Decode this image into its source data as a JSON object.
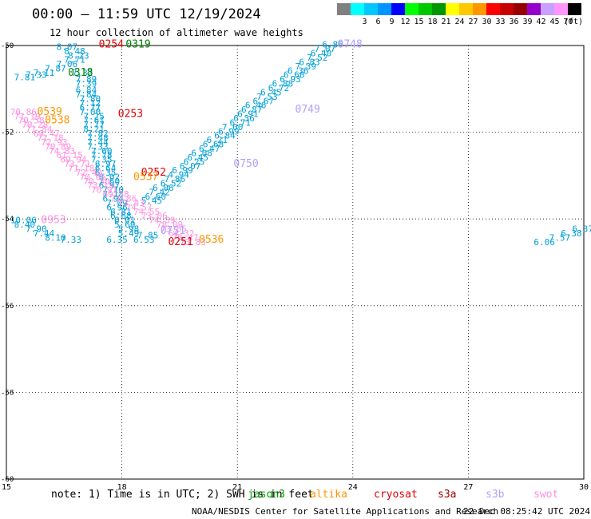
{
  "header": {
    "title": "00:00 – 11:59 UTC 12/19/2024",
    "subtitle": "12 hour collection of altimeter wave heights"
  },
  "legend": {
    "unit": "(ft)",
    "items": [
      {
        "label": "",
        "color": "#808080"
      },
      {
        "label": "3",
        "color": "#00ffff"
      },
      {
        "label": "6",
        "color": "#00c8ff"
      },
      {
        "label": "9",
        "color": "#0096ff"
      },
      {
        "label": "12",
        "color": "#0000ff"
      },
      {
        "label": "15",
        "color": "#00ff00"
      },
      {
        "label": "18",
        "color": "#00c800"
      },
      {
        "label": "21",
        "color": "#009600"
      },
      {
        "label": "24",
        "color": "#ffff00"
      },
      {
        "label": "27",
        "color": "#ffc800"
      },
      {
        "label": "30",
        "color": "#ff9600"
      },
      {
        "label": "33",
        "color": "#ff0000"
      },
      {
        "label": "36",
        "color": "#c80000"
      },
      {
        "label": "39",
        "color": "#960000"
      },
      {
        "label": "42",
        "color": "#9600c8"
      },
      {
        "label": "45",
        "color": "#c8a0ff"
      },
      {
        "label": "70",
        "color": "#ff96ff"
      },
      {
        "label": "",
        "color": "#000000"
      }
    ]
  },
  "map": {
    "lon_ticks": [
      "15",
      "18",
      "21",
      "24",
      "27",
      "30"
    ],
    "lat_ticks": [
      "-50",
      "-52",
      "-54",
      "-56",
      "-58",
      "-60"
    ],
    "lon_range": [
      15,
      30
    ],
    "lat_range": [
      -50,
      -60
    ],
    "colors": {
      "jason": "#00a0d8",
      "jason_time": "#008000",
      "altika": "#ff9600",
      "cryosat": "#e00000",
      "s3a": "#a00000",
      "s3b": "#b0a0ff",
      "swot": "#ff90e0"
    },
    "tracks": [
      {
        "sat": "jason",
        "points": [
          {
            "lon": 16.3,
            "lat": -50.1,
            "v": "8.07"
          },
          {
            "lon": 16.5,
            "lat": -50.2,
            "v": "8.48"
          },
          {
            "lon": 16.6,
            "lat": -50.3,
            "v": "8.23"
          },
          {
            "lon": 16.5,
            "lat": -50.4,
            "v": "7.71"
          },
          {
            "lon": 16.3,
            "lat": -50.5,
            "v": "7.06"
          },
          {
            "lon": 16.0,
            "lat": -50.6,
            "v": "7.87"
          },
          {
            "lon": 15.7,
            "lat": -50.7,
            "v": "7.11"
          },
          {
            "lon": 15.5,
            "lat": -50.75,
            "v": "7.33"
          },
          {
            "lon": 15.2,
            "lat": -50.8,
            "v": "7.81"
          },
          {
            "lon": 16.7,
            "lat": -50.7,
            "v": "7.32"
          },
          {
            "lon": 16.8,
            "lat": -50.85,
            "v": "7.89"
          },
          {
            "lon": 16.8,
            "lat": -50.95,
            "v": "7.39"
          },
          {
            "lon": 16.8,
            "lat": -51.1,
            "v": "6.84"
          },
          {
            "lon": 16.8,
            "lat": -51.2,
            "v": "7.84"
          },
          {
            "lon": 16.9,
            "lat": -51.3,
            "v": "7.80"
          },
          {
            "lon": 16.9,
            "lat": -51.4,
            "v": "7.12"
          },
          {
            "lon": 16.9,
            "lat": -51.5,
            "v": "6.77"
          },
          {
            "lon": 16.9,
            "lat": -51.6,
            "v": "7.00"
          },
          {
            "lon": 17.0,
            "lat": -51.7,
            "v": "7.25"
          },
          {
            "lon": 17.0,
            "lat": -51.8,
            "v": "7.61"
          },
          {
            "lon": 17.0,
            "lat": -51.9,
            "v": "7.77"
          },
          {
            "lon": 17.0,
            "lat": -52.0,
            "v": "8.21"
          },
          {
            "lon": 17.1,
            "lat": -52.1,
            "v": "7.82"
          },
          {
            "lon": 17.1,
            "lat": -52.2,
            "v": "7.48"
          },
          {
            "lon": 17.1,
            "lat": -52.3,
            "v": "7.44"
          },
          {
            "lon": 17.1,
            "lat": -52.4,
            "v": "7.33"
          },
          {
            "lon": 17.2,
            "lat": -52.5,
            "v": "7.60"
          },
          {
            "lon": 17.2,
            "lat": -52.6,
            "v": "7.78"
          },
          {
            "lon": 17.2,
            "lat": -52.7,
            "v": "7.35"
          },
          {
            "lon": 17.3,
            "lat": -52.8,
            "v": "6.97"
          },
          {
            "lon": 17.3,
            "lat": -52.9,
            "v": "6.64"
          },
          {
            "lon": 17.3,
            "lat": -53.0,
            "v": "6.35"
          },
          {
            "lon": 17.4,
            "lat": -53.1,
            "v": "6.02"
          },
          {
            "lon": 17.4,
            "lat": -53.2,
            "v": "7.60"
          },
          {
            "lon": 17.4,
            "lat": -53.3,
            "v": "6.97"
          },
          {
            "lon": 17.5,
            "lat": -53.4,
            "v": "7.10"
          },
          {
            "lon": 17.5,
            "lat": -53.5,
            "v": "7.18"
          },
          {
            "lon": 17.5,
            "lat": -53.6,
            "v": "6.94"
          },
          {
            "lon": 17.6,
            "lat": -53.7,
            "v": "7.09"
          },
          {
            "lon": 17.6,
            "lat": -53.8,
            "v": "6.96"
          },
          {
            "lon": 17.7,
            "lat": -53.9,
            "v": "6.81"
          },
          {
            "lon": 17.7,
            "lat": -54.0,
            "v": "6.68"
          },
          {
            "lon": 17.8,
            "lat": -54.1,
            "v": "6.01"
          },
          {
            "lon": 17.8,
            "lat": -54.2,
            "v": "5.69"
          },
          {
            "lon": 17.9,
            "lat": -54.3,
            "v": "5.98"
          },
          {
            "lon": 17.9,
            "lat": -54.4,
            "v": "5.49"
          },
          {
            "lon": 17.6,
            "lat": -54.55,
            "v": "6.35"
          }
        ]
      },
      {
        "sat": "jason",
        "points": [
          {
            "lon": 23.2,
            "lat": -50.05,
            "v": "6.86"
          },
          {
            "lon": 23.0,
            "lat": -50.15,
            "v": "7.07"
          },
          {
            "lon": 22.9,
            "lat": -50.25,
            "v": "6.40"
          },
          {
            "lon": 22.8,
            "lat": -50.35,
            "v": "7.52"
          },
          {
            "lon": 22.6,
            "lat": -50.45,
            "v": "6.83"
          },
          {
            "lon": 22.5,
            "lat": -50.55,
            "v": "7.39"
          },
          {
            "lon": 22.3,
            "lat": -50.65,
            "v": "6.36"
          },
          {
            "lon": 22.2,
            "lat": -50.75,
            "v": "6.60"
          },
          {
            "lon": 22.1,
            "lat": -50.85,
            "v": "6.93"
          },
          {
            "lon": 21.9,
            "lat": -50.95,
            "v": "6.88"
          },
          {
            "lon": 21.8,
            "lat": -51.05,
            "v": "6.72"
          },
          {
            "lon": 21.6,
            "lat": -51.15,
            "v": "6.45"
          },
          {
            "lon": 21.5,
            "lat": -51.25,
            "v": "7.53"
          },
          {
            "lon": 21.4,
            "lat": -51.35,
            "v": "6.67"
          },
          {
            "lon": 21.2,
            "lat": -51.45,
            "v": "6.46"
          },
          {
            "lon": 21.1,
            "lat": -51.55,
            "v": "6.87"
          },
          {
            "lon": 21.0,
            "lat": -51.65,
            "v": "6.91"
          },
          {
            "lon": 20.9,
            "lat": -51.75,
            "v": "6.36"
          },
          {
            "lon": 20.8,
            "lat": -51.85,
            "v": "6.71"
          },
          {
            "lon": 20.6,
            "lat": -51.95,
            "v": "7.00"
          },
          {
            "lon": 20.5,
            "lat": -52.05,
            "v": "6.99"
          },
          {
            "lon": 20.4,
            "lat": -52.15,
            "v": "6.84"
          },
          {
            "lon": 20.2,
            "lat": -52.25,
            "v": "6.21"
          },
          {
            "lon": 20.1,
            "lat": -52.35,
            "v": "6.68"
          },
          {
            "lon": 20.0,
            "lat": -52.45,
            "v": "6.47"
          },
          {
            "lon": 19.8,
            "lat": -52.55,
            "v": "6.08"
          },
          {
            "lon": 19.7,
            "lat": -52.65,
            "v": "6.45"
          },
          {
            "lon": 19.6,
            "lat": -52.75,
            "v": "6.25"
          },
          {
            "lon": 19.5,
            "lat": -52.85,
            "v": "6.07"
          },
          {
            "lon": 19.3,
            "lat": -52.95,
            "v": "6.99"
          },
          {
            "lon": 19.2,
            "lat": -53.05,
            "v": "4.94"
          },
          {
            "lon": 19.1,
            "lat": -53.15,
            "v": "7.86"
          },
          {
            "lon": 19.0,
            "lat": -53.25,
            "v": "6.52"
          },
          {
            "lon": 18.8,
            "lat": -53.35,
            "v": "6.06"
          },
          {
            "lon": 18.7,
            "lat": -53.45,
            "v": "7.42"
          },
          {
            "lon": 18.6,
            "lat": -53.55,
            "v": "6.60"
          },
          {
            "lon": 18.5,
            "lat": -53.65,
            "v": "5.45"
          },
          {
            "lon": 18.4,
            "lat": -54.45,
            "v": "7.85"
          },
          {
            "lon": 18.3,
            "lat": -54.55,
            "v": "6.53"
          }
        ]
      },
      {
        "sat": "jason",
        "points": [
          {
            "lon": 15.1,
            "lat": -54.1,
            "v": "10.06"
          },
          {
            "lon": 15.2,
            "lat": -54.2,
            "v": "8.40"
          },
          {
            "lon": 15.5,
            "lat": -54.3,
            "v": "7.90"
          },
          {
            "lon": 15.7,
            "lat": -54.4,
            "v": "7.44"
          },
          {
            "lon": 16.0,
            "lat": -54.5,
            "v": "8.10"
          },
          {
            "lon": 16.4,
            "lat": -54.55,
            "v": "7.33"
          }
        ]
      },
      {
        "sat": "jason",
        "points": [
          {
            "lon": 28.7,
            "lat": -54.6,
            "v": "6.06"
          },
          {
            "lon": 29.1,
            "lat": -54.5,
            "v": "7.57"
          },
          {
            "lon": 29.4,
            "lat": -54.4,
            "v": "6.38"
          },
          {
            "lon": 29.7,
            "lat": -54.3,
            "v": "6.37"
          }
        ]
      },
      {
        "sat": "swot",
        "points": [
          {
            "lon": 15.1,
            "lat": -51.6,
            "v": "70.86"
          },
          {
            "lon": 15.2,
            "lat": -51.7,
            "v": "71.19"
          },
          {
            "lon": 15.3,
            "lat": -51.8,
            "v": "70.58"
          },
          {
            "lon": 15.4,
            "lat": -51.9,
            "v": "70.28"
          },
          {
            "lon": 15.5,
            "lat": -52.0,
            "v": "71.84"
          },
          {
            "lon": 15.7,
            "lat": -52.1,
            "v": "69.47"
          },
          {
            "lon": 15.8,
            "lat": -52.2,
            "v": "71.18"
          },
          {
            "lon": 15.9,
            "lat": -52.3,
            "v": "72.93"
          },
          {
            "lon": 16.0,
            "lat": -52.4,
            "v": "70.89"
          },
          {
            "lon": 16.1,
            "lat": -52.5,
            "v": "74.83"
          },
          {
            "lon": 16.3,
            "lat": -52.6,
            "v": "61.15"
          },
          {
            "lon": 16.4,
            "lat": -52.7,
            "v": "69.94"
          },
          {
            "lon": 16.5,
            "lat": -52.8,
            "v": "73.71"
          },
          {
            "lon": 16.6,
            "lat": -52.9,
            "v": "71.18"
          },
          {
            "lon": 16.8,
            "lat": -53.0,
            "v": "72.40"
          },
          {
            "lon": 16.9,
            "lat": -53.1,
            "v": "70.66"
          },
          {
            "lon": 17.0,
            "lat": -53.2,
            "v": "70.30"
          },
          {
            "lon": 17.1,
            "lat": -53.3,
            "v": "73.15"
          },
          {
            "lon": 17.2,
            "lat": -53.4,
            "v": "76.91"
          },
          {
            "lon": 17.5,
            "lat": -53.5,
            "v": "69.38"
          },
          {
            "lon": 17.7,
            "lat": -53.6,
            "v": "71.86"
          },
          {
            "lon": 17.9,
            "lat": -53.7,
            "v": "73.43"
          },
          {
            "lon": 18.1,
            "lat": -53.8,
            "v": "74.57"
          },
          {
            "lon": 18.3,
            "lat": -53.9,
            "v": "74.55"
          },
          {
            "lon": 18.5,
            "lat": -54.0,
            "v": "73.06"
          },
          {
            "lon": 18.7,
            "lat": -54.1,
            "v": "74.39"
          },
          {
            "lon": 18.9,
            "lat": -54.2,
            "v": "78.09"
          },
          {
            "lon": 19.0,
            "lat": -54.3,
            "v": "73.55"
          },
          {
            "lon": 19.2,
            "lat": -54.4,
            "v": "64.32"
          },
          {
            "lon": 19.3,
            "lat": -54.5,
            "v": "75.47"
          },
          {
            "lon": 19.5,
            "lat": -54.6,
            "v": "73.83"
          }
        ]
      }
    ],
    "time_labels": [
      {
        "sat": "cryosat",
        "lon": 17.4,
        "lat": -50.05,
        "v": "0254"
      },
      {
        "sat": "jason_time",
        "lon": 18.1,
        "lat": -50.05,
        "v": "0319"
      },
      {
        "sat": "jason_time",
        "lon": 16.6,
        "lat": -50.7,
        "v": "0318"
      },
      {
        "sat": "altika",
        "lon": 15.8,
        "lat": -51.6,
        "v": "0539"
      },
      {
        "sat": "altika",
        "lon": 16.0,
        "lat": -51.8,
        "v": "0538"
      },
      {
        "sat": "cryosat",
        "lon": 17.9,
        "lat": -51.65,
        "v": "0253"
      },
      {
        "sat": "s3b",
        "lon": 23.6,
        "lat": -50.05,
        "v": "0748"
      },
      {
        "sat": "s3b",
        "lon": 22.5,
        "lat": -51.55,
        "v": "0749"
      },
      {
        "sat": "s3b",
        "lon": 20.9,
        "lat": -52.8,
        "v": "0750"
      },
      {
        "sat": "cryosat",
        "lon": 18.5,
        "lat": -53.0,
        "v": "0252"
      },
      {
        "sat": "altika",
        "lon": 18.3,
        "lat": -53.1,
        "v": "0537"
      },
      {
        "sat": "swot",
        "lon": 15.9,
        "lat": -54.1,
        "v": "0953"
      },
      {
        "sat": "s3b",
        "lon": 19.0,
        "lat": -54.35,
        "v": "0751"
      },
      {
        "sat": "cryosat",
        "lon": 19.2,
        "lat": -54.6,
        "v": "0251"
      },
      {
        "sat": "altika",
        "lon": 20.0,
        "lat": -54.55,
        "v": "0536"
      }
    ]
  },
  "note": {
    "text": "note: 1) Time is in UTC; 2) SWH is in feet"
  },
  "satellites": [
    {
      "key": "jason",
      "label": "jason3",
      "color": "#00a000"
    },
    {
      "key": "altika",
      "label": "altika",
      "color": "#ff9600"
    },
    {
      "key": "cryosat",
      "label": "cryosat",
      "color": "#e00000"
    },
    {
      "key": "s3a",
      "label": "s3a",
      "color": "#a00000"
    },
    {
      "key": "s3b",
      "label": "s3b",
      "color": "#b0a0ff"
    },
    {
      "key": "swot",
      "label": "swot",
      "color": "#ff90e0"
    }
  ],
  "footer": {
    "agency": "NOAA/NESDIS Center for Satellite Applications and Research",
    "timestamp": "22 Dec 08:25:42 UTC 2024"
  }
}
